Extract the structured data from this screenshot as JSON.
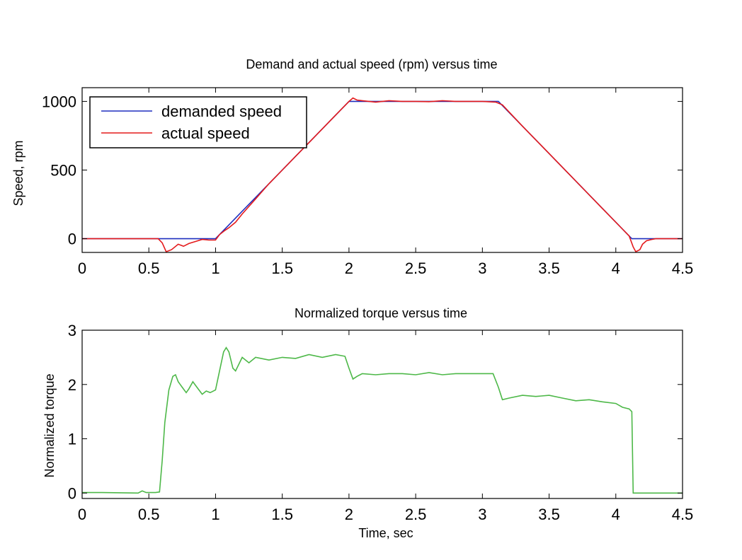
{
  "chart_data": [
    {
      "type": "line",
      "title": "Demand and actual speed (rpm) versus time",
      "xlabel": "",
      "ylabel": "Speed, rpm",
      "xlim": [
        0,
        4.5
      ],
      "ylim": [
        -100,
        1100
      ],
      "xticks": [
        "0",
        "0.5",
        "1",
        "1.5",
        "2",
        "2.5",
        "3",
        "3.5",
        "4",
        "4.5"
      ],
      "yticks": [
        "0",
        "500",
        "1000"
      ],
      "grid": false,
      "legend_position": "top-left",
      "series": [
        {
          "name": "demanded speed",
          "color": "#1f2fbf",
          "x": [
            0,
            1.0,
            2.0,
            3.12,
            4.12,
            4.5
          ],
          "y": [
            0,
            0,
            1000,
            1000,
            0,
            0
          ]
        },
        {
          "name": "actual speed",
          "color": "#e41a1c",
          "x": [
            0,
            0.57,
            0.6,
            0.63,
            0.67,
            0.72,
            0.76,
            0.8,
            0.85,
            0.9,
            0.95,
            1.0,
            1.03,
            1.07,
            1.1,
            1.15,
            1.2,
            1.3,
            1.4,
            1.5,
            1.6,
            1.7,
            1.8,
            1.9,
            2.0,
            2.03,
            2.06,
            2.1,
            2.15,
            2.2,
            2.3,
            2.4,
            2.5,
            2.6,
            2.7,
            2.8,
            2.9,
            3.0,
            3.1,
            3.15,
            3.3,
            3.5,
            3.7,
            3.9,
            4.05,
            4.1,
            4.13,
            4.15,
            4.18,
            4.2,
            4.23,
            4.27,
            4.3,
            4.5
          ],
          "y": [
            0,
            0,
            -30,
            -95,
            -80,
            -40,
            -55,
            -35,
            -20,
            -5,
            -10,
            -10,
            30,
            60,
            80,
            120,
            180,
            290,
            400,
            500,
            600,
            700,
            800,
            900,
            1000,
            1025,
            1010,
            1005,
            1000,
            995,
            1005,
            1000,
            1000,
            998,
            1005,
            1000,
            1000,
            1000,
            995,
            975,
            820,
            620,
            420,
            220,
            70,
            20,
            -60,
            -95,
            -80,
            -40,
            -15,
            -5,
            0,
            0
          ]
        }
      ]
    },
    {
      "type": "line",
      "title": "Normalized torque versus time",
      "xlabel": "Time, sec",
      "ylabel": "Normalized torque",
      "xlim": [
        0,
        4.5
      ],
      "ylim": [
        -0.1,
        3
      ],
      "xticks": [
        "0",
        "0.5",
        "1",
        "1.5",
        "2",
        "2.5",
        "3",
        "3.5",
        "4",
        "4.5"
      ],
      "yticks": [
        "0",
        "1",
        "2",
        "3"
      ],
      "grid": false,
      "series": [
        {
          "color": "#4db848",
          "x": [
            0,
            0.15,
            0.42,
            0.45,
            0.48,
            0.5,
            0.55,
            0.58,
            0.6,
            0.62,
            0.65,
            0.68,
            0.7,
            0.72,
            0.75,
            0.78,
            0.8,
            0.83,
            0.86,
            0.9,
            0.93,
            0.96,
            1.0,
            1.03,
            1.06,
            1.08,
            1.1,
            1.13,
            1.15,
            1.2,
            1.25,
            1.3,
            1.4,
            1.5,
            1.6,
            1.7,
            1.8,
            1.9,
            1.97,
            2.0,
            2.03,
            2.06,
            2.1,
            2.2,
            2.3,
            2.4,
            2.5,
            2.6,
            2.7,
            2.8,
            2.9,
            3.0,
            3.08,
            3.12,
            3.15,
            3.2,
            3.3,
            3.4,
            3.5,
            3.6,
            3.7,
            3.8,
            3.9,
            4.0,
            4.05,
            4.1,
            4.12,
            4.13,
            4.14,
            4.3,
            4.5
          ],
          "y": [
            0.01,
            0.01,
            0.0,
            0.04,
            0.01,
            0.01,
            0.01,
            0.02,
            0.6,
            1.3,
            1.9,
            2.15,
            2.18,
            2.05,
            1.95,
            1.85,
            1.92,
            2.05,
            1.95,
            1.82,
            1.88,
            1.85,
            1.9,
            2.25,
            2.6,
            2.68,
            2.6,
            2.3,
            2.25,
            2.5,
            2.4,
            2.5,
            2.45,
            2.5,
            2.48,
            2.55,
            2.5,
            2.55,
            2.52,
            2.3,
            2.1,
            2.15,
            2.2,
            2.18,
            2.2,
            2.2,
            2.18,
            2.22,
            2.18,
            2.2,
            2.2,
            2.2,
            2.2,
            1.95,
            1.72,
            1.75,
            1.8,
            1.78,
            1.8,
            1.75,
            1.7,
            1.72,
            1.68,
            1.65,
            1.58,
            1.55,
            1.5,
            0.0,
            0.0,
            0.0,
            0.0
          ]
        }
      ]
    }
  ]
}
